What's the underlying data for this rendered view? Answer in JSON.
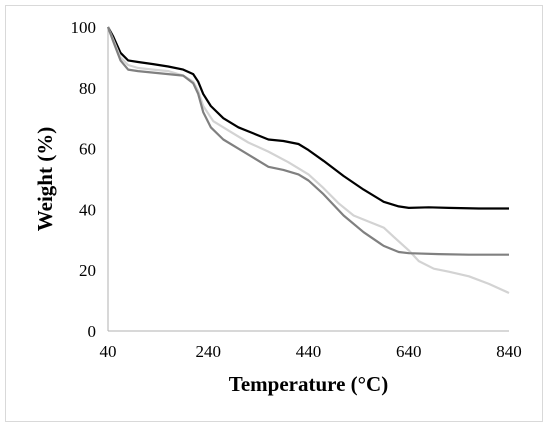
{
  "chart_data": {
    "type": "line",
    "title": "",
    "xlabel": "Temperature (°C)",
    "ylabel": "Weight (%)",
    "xlim": [
      40,
      840
    ],
    "ylim": [
      0,
      100
    ],
    "xticks": [
      40,
      240,
      440,
      640,
      840
    ],
    "yticks": [
      0,
      20,
      40,
      60,
      80,
      100
    ],
    "grid": false,
    "legend": "none",
    "series": [
      {
        "color": "#000000",
        "points": [
          [
            40,
            100
          ],
          [
            50,
            97
          ],
          [
            65,
            91.5
          ],
          [
            80,
            89
          ],
          [
            100,
            88.5
          ],
          [
            130,
            87.8
          ],
          [
            160,
            87
          ],
          [
            190,
            86
          ],
          [
            210,
            84.5
          ],
          [
            220,
            82
          ],
          [
            230,
            78
          ],
          [
            245,
            74
          ],
          [
            270,
            70
          ],
          [
            300,
            67
          ],
          [
            330,
            65
          ],
          [
            360,
            63
          ],
          [
            390,
            62.5
          ],
          [
            420,
            61.5
          ],
          [
            440,
            59.5
          ],
          [
            470,
            56
          ],
          [
            510,
            51
          ],
          [
            550,
            46.5
          ],
          [
            590,
            42.5
          ],
          [
            620,
            41
          ],
          [
            640,
            40.5
          ],
          [
            680,
            40.7
          ],
          [
            720,
            40.5
          ],
          [
            780,
            40.3
          ],
          [
            840,
            40.3
          ]
        ]
      },
      {
        "color": "#d3d3d3",
        "points": [
          [
            40,
            100
          ],
          [
            50,
            96
          ],
          [
            65,
            90
          ],
          [
            80,
            87.5
          ],
          [
            100,
            86.5
          ],
          [
            130,
            86
          ],
          [
            160,
            85.5
          ],
          [
            190,
            84
          ],
          [
            210,
            82
          ],
          [
            220,
            79
          ],
          [
            230,
            74
          ],
          [
            250,
            69
          ],
          [
            280,
            66
          ],
          [
            320,
            62
          ],
          [
            360,
            59
          ],
          [
            400,
            55.5
          ],
          [
            440,
            51.5
          ],
          [
            470,
            47
          ],
          [
            500,
            42
          ],
          [
            530,
            38
          ],
          [
            560,
            36
          ],
          [
            590,
            34
          ],
          [
            610,
            31
          ],
          [
            640,
            26.5
          ],
          [
            660,
            23
          ],
          [
            690,
            20.5
          ],
          [
            720,
            19.5
          ],
          [
            760,
            18
          ],
          [
            800,
            15.5
          ],
          [
            840,
            12.5
          ]
        ]
      },
      {
        "color": "#808080",
        "points": [
          [
            40,
            100
          ],
          [
            50,
            95.5
          ],
          [
            65,
            89
          ],
          [
            80,
            86
          ],
          [
            100,
            85.5
          ],
          [
            130,
            85
          ],
          [
            160,
            84.5
          ],
          [
            190,
            84
          ],
          [
            210,
            81.5
          ],
          [
            220,
            78
          ],
          [
            230,
            72
          ],
          [
            245,
            67
          ],
          [
            270,
            63
          ],
          [
            300,
            60
          ],
          [
            330,
            57
          ],
          [
            360,
            54
          ],
          [
            390,
            53
          ],
          [
            420,
            51.5
          ],
          [
            440,
            49.5
          ],
          [
            470,
            45
          ],
          [
            510,
            38
          ],
          [
            550,
            32.5
          ],
          [
            590,
            28
          ],
          [
            620,
            26
          ],
          [
            640,
            25.6
          ],
          [
            700,
            25.3
          ],
          [
            760,
            25.1
          ],
          [
            840,
            25.1
          ]
        ]
      }
    ]
  }
}
